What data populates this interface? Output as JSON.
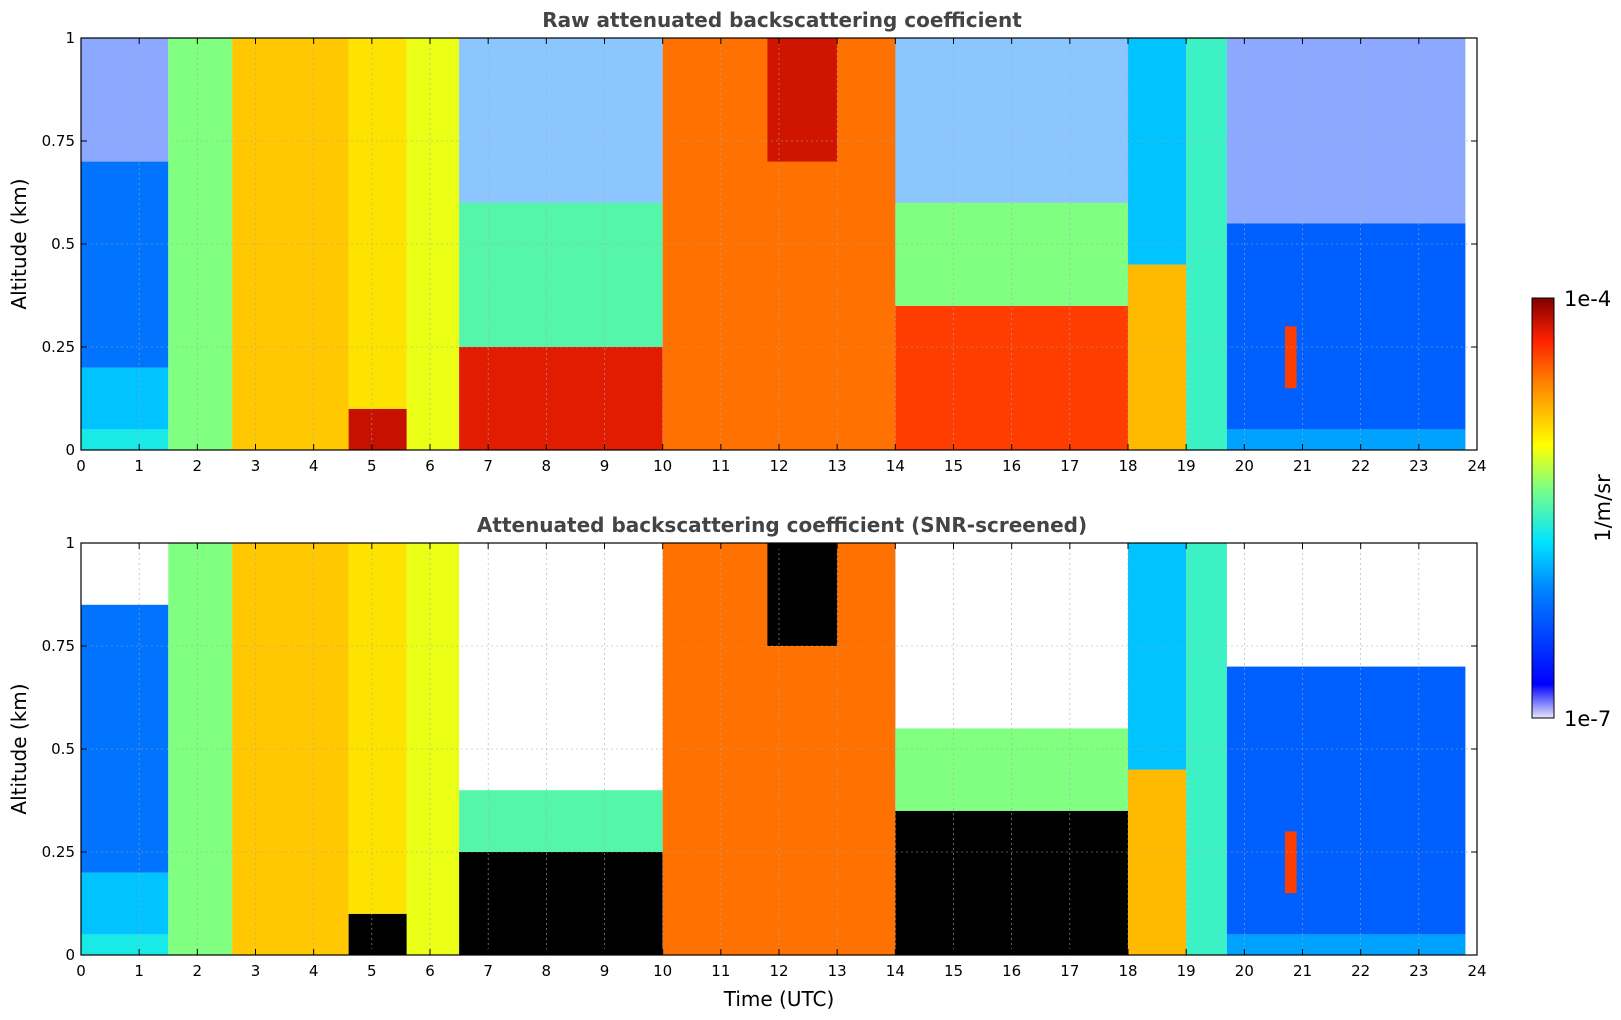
{
  "chart_data": [
    {
      "type": "heatmap",
      "title": "Raw attenuated backscattering coefficient",
      "xlabel": "",
      "ylabel": "Altitude (km)",
      "xlim": [
        0,
        24
      ],
      "ylim": [
        0,
        1
      ],
      "x_ticks": [
        "0",
        "1",
        "2",
        "3",
        "4",
        "5",
        "6",
        "7",
        "8",
        "9",
        "10",
        "11",
        "12",
        "13",
        "14",
        "15",
        "16",
        "17",
        "18",
        "19",
        "20",
        "21",
        "22",
        "23",
        "24"
      ],
      "y_ticks": [
        "0",
        "0.25",
        "0.5",
        "0.75",
        "1"
      ],
      "grid": true,
      "regions": [
        {
          "x": [
            0,
            1.5
          ],
          "y": [
            0,
            0.05
          ],
          "level": 0.38
        },
        {
          "x": [
            0,
            1.5
          ],
          "y": [
            0.05,
            0.2
          ],
          "level": 0.3
        },
        {
          "x": [
            0,
            1.5
          ],
          "y": [
            0.2,
            0.7
          ],
          "level": 0.18
        },
        {
          "x": [
            0,
            1.5
          ],
          "y": [
            0.7,
            1.0
          ],
          "level": 0.1,
          "sparse": true
        },
        {
          "x": [
            1.5,
            2.6
          ],
          "y": [
            0,
            1.0
          ],
          "level": 0.5
        },
        {
          "x": [
            2.6,
            4.6
          ],
          "y": [
            0,
            1.0
          ],
          "level": 0.7
        },
        {
          "x": [
            4.6,
            5.6
          ],
          "y": [
            0,
            0.1
          ],
          "level": 0.93
        },
        {
          "x": [
            4.6,
            5.6
          ],
          "y": [
            0.1,
            1.0
          ],
          "level": 0.66
        },
        {
          "x": [
            5.6,
            6.5
          ],
          "y": [
            0,
            1.0
          ],
          "level": 0.6
        },
        {
          "x": [
            6.5,
            10.0
          ],
          "y": [
            0,
            0.25
          ],
          "level": 0.9
        },
        {
          "x": [
            6.5,
            10.0
          ],
          "y": [
            0.25,
            0.6
          ],
          "level": 0.45
        },
        {
          "x": [
            6.5,
            10.0
          ],
          "y": [
            0.6,
            1.0
          ],
          "level": 0.2,
          "sparse": true
        },
        {
          "x": [
            10.0,
            14.0
          ],
          "y": [
            0,
            1.0
          ],
          "level": 0.8
        },
        {
          "x": [
            11.8,
            13.0
          ],
          "y": [
            0.7,
            1.0
          ],
          "level": 0.92
        },
        {
          "x": [
            14.0,
            18.0
          ],
          "y": [
            0,
            0.35
          ],
          "level": 0.85
        },
        {
          "x": [
            14.0,
            18.0
          ],
          "y": [
            0.35,
            0.6
          ],
          "level": 0.5
        },
        {
          "x": [
            14.0,
            18.0
          ],
          "y": [
            0.6,
            1.0
          ],
          "level": 0.2,
          "sparse": true
        },
        {
          "x": [
            18.0,
            19.0
          ],
          "y": [
            0,
            0.45
          ],
          "level": 0.72
        },
        {
          "x": [
            18.0,
            19.0
          ],
          "y": [
            0.45,
            1.0
          ],
          "level": 0.3
        },
        {
          "x": [
            19.0,
            19.7
          ],
          "y": [
            0,
            1.0
          ],
          "level": 0.42
        },
        {
          "x": [
            19.7,
            23.8
          ],
          "y": [
            0,
            0.05
          ],
          "level": 0.25
        },
        {
          "x": [
            19.7,
            23.8
          ],
          "y": [
            0.05,
            0.55
          ],
          "level": 0.15
        },
        {
          "x": [
            19.7,
            23.8
          ],
          "y": [
            0.55,
            1.0
          ],
          "level": 0.1,
          "sparse": true
        },
        {
          "x": [
            20.7,
            20.9
          ],
          "y": [
            0.15,
            0.3
          ],
          "level": 0.85
        }
      ]
    },
    {
      "type": "heatmap",
      "title": "Attenuated backscattering coefficient (SNR-screened)",
      "xlabel": "Time (UTC)",
      "ylabel": "Altitude (km)",
      "xlim": [
        0,
        24
      ],
      "ylim": [
        0,
        1
      ],
      "x_ticks": [
        "0",
        "1",
        "2",
        "3",
        "4",
        "5",
        "6",
        "7",
        "8",
        "9",
        "10",
        "11",
        "12",
        "13",
        "14",
        "15",
        "16",
        "17",
        "18",
        "19",
        "20",
        "21",
        "22",
        "23",
        "24"
      ],
      "y_ticks": [
        "0",
        "0.25",
        "0.5",
        "0.75",
        "1"
      ],
      "grid": true,
      "regions": [
        {
          "x": [
            0,
            1.5
          ],
          "y": [
            0,
            0.05
          ],
          "level": 0.38
        },
        {
          "x": [
            0,
            1.5
          ],
          "y": [
            0.05,
            0.2
          ],
          "level": 0.3
        },
        {
          "x": [
            0,
            1.5
          ],
          "y": [
            0.2,
            0.85
          ],
          "level": 0.18
        },
        {
          "x": [
            1.5,
            2.6
          ],
          "y": [
            0,
            1.0
          ],
          "level": 0.5
        },
        {
          "x": [
            2.6,
            4.6
          ],
          "y": [
            0,
            1.0
          ],
          "level": 0.7
        },
        {
          "x": [
            4.6,
            5.6
          ],
          "y": [
            0,
            0.1
          ],
          "level": 1.0
        },
        {
          "x": [
            4.6,
            5.6
          ],
          "y": [
            0.1,
            1.0
          ],
          "level": 0.66
        },
        {
          "x": [
            5.6,
            6.5
          ],
          "y": [
            0,
            1.0
          ],
          "level": 0.6
        },
        {
          "x": [
            6.5,
            10.0
          ],
          "y": [
            0,
            0.25
          ],
          "level": 1.0
        },
        {
          "x": [
            6.5,
            10.0
          ],
          "y": [
            0.25,
            0.4
          ],
          "level": 0.45
        },
        {
          "x": [
            10.0,
            14.0
          ],
          "y": [
            0,
            1.0
          ],
          "level": 0.8
        },
        {
          "x": [
            11.8,
            13.0
          ],
          "y": [
            0.75,
            1.0
          ],
          "level": 1.0
        },
        {
          "x": [
            14.0,
            18.0
          ],
          "y": [
            0,
            0.35
          ],
          "level": 1.0
        },
        {
          "x": [
            14.0,
            18.0
          ],
          "y": [
            0.35,
            0.55
          ],
          "level": 0.5
        },
        {
          "x": [
            18.0,
            19.0
          ],
          "y": [
            0,
            0.45
          ],
          "level": 0.72
        },
        {
          "x": [
            18.0,
            19.0
          ],
          "y": [
            0.45,
            1.0
          ],
          "level": 0.3
        },
        {
          "x": [
            19.0,
            19.7
          ],
          "y": [
            0,
            1.0
          ],
          "level": 0.42
        },
        {
          "x": [
            19.7,
            23.8
          ],
          "y": [
            0,
            0.05
          ],
          "level": 0.25
        },
        {
          "x": [
            19.7,
            23.8
          ],
          "y": [
            0.05,
            0.7
          ],
          "level": 0.15
        },
        {
          "x": [
            20.7,
            20.9
          ],
          "y": [
            0.15,
            0.3
          ],
          "level": 0.85
        }
      ]
    }
  ],
  "colorbar": {
    "label": "1/m/sr",
    "max_label": "1e-4",
    "min_label": "1e-7",
    "range": [
      1e-07,
      0.0001
    ],
    "scale": "log",
    "colormap": "jet"
  }
}
